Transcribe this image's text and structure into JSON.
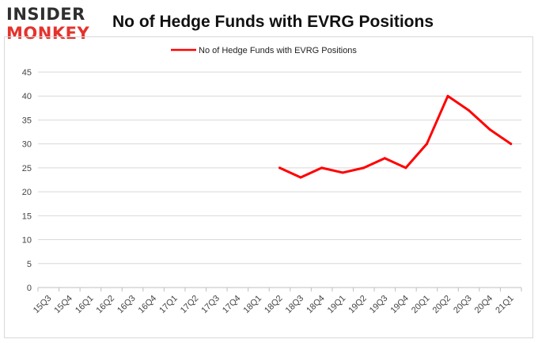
{
  "logo": {
    "line1": "INSIDER",
    "line2": "MONKEY"
  },
  "colors": {
    "series": "#ff0000",
    "grid": "#d9d9d9",
    "axis": "#bfbfbf",
    "logo_red": "#e5322d",
    "logo_dark": "#2f2f2f"
  },
  "chart_data": {
    "type": "line",
    "title": "No of Hedge Funds with EVRG Positions",
    "xlabel": "",
    "ylabel": "",
    "categories": [
      "15Q3",
      "15Q4",
      "16Q1",
      "16Q2",
      "16Q3",
      "16Q4",
      "17Q1",
      "17Q2",
      "17Q3",
      "17Q4",
      "18Q1",
      "18Q2",
      "18Q3",
      "18Q4",
      "19Q1",
      "19Q2",
      "19Q3",
      "19Q4",
      "20Q1",
      "20Q2",
      "20Q3",
      "20Q4",
      "21Q1"
    ],
    "series": [
      {
        "name": "No of Hedge Funds with EVRG Positions",
        "values": [
          null,
          null,
          null,
          null,
          null,
          null,
          null,
          null,
          null,
          null,
          null,
          25,
          23,
          25,
          24,
          25,
          27,
          25,
          30,
          40,
          37,
          33,
          30
        ]
      }
    ],
    "ylim": [
      0,
      45
    ],
    "yticks": [
      0,
      5,
      10,
      15,
      20,
      25,
      30,
      35,
      40,
      45
    ],
    "grid": true,
    "legend_position": "top-center"
  }
}
